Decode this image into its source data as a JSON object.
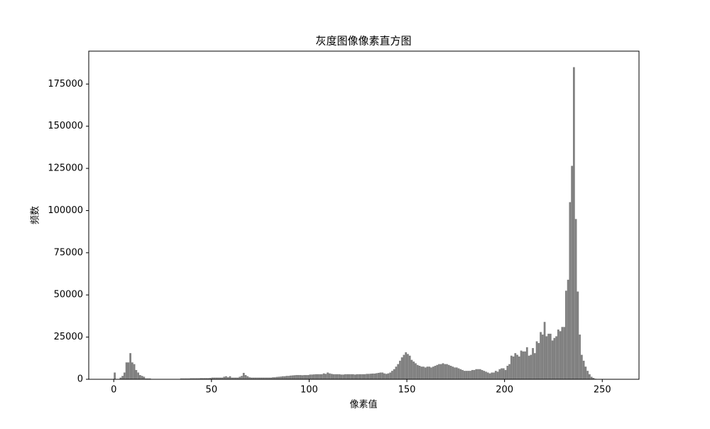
{
  "chart_data": {
    "type": "histogram",
    "title": "灰度图像像素直方图",
    "xlabel": "像素值",
    "ylabel": "频数",
    "color": "#808080",
    "xlim": [
      -12.8,
      268.8
    ],
    "ylim": [
      0,
      194500
    ],
    "xticks": [
      0,
      50,
      100,
      150,
      200,
      250
    ],
    "yticks": [
      0,
      25000,
      50000,
      75000,
      100000,
      125000,
      150000,
      175000
    ],
    "bins": [
      0,
      1,
      2,
      3,
      4,
      5,
      6,
      7,
      8,
      9,
      10,
      11,
      12,
      13,
      14,
      15,
      16,
      17,
      18,
      19,
      20,
      21,
      22,
      23,
      24,
      25,
      26,
      27,
      28,
      29,
      30,
      31,
      32,
      33,
      34,
      35,
      36,
      37,
      38,
      39,
      40,
      41,
      42,
      43,
      44,
      45,
      46,
      47,
      48,
      49,
      50,
      51,
      52,
      53,
      54,
      55,
      56,
      57,
      58,
      59,
      60,
      61,
      62,
      63,
      64,
      65,
      66,
      67,
      68,
      69,
      70,
      71,
      72,
      73,
      74,
      75,
      76,
      77,
      78,
      79,
      80,
      81,
      82,
      83,
      84,
      85,
      86,
      87,
      88,
      89,
      90,
      91,
      92,
      93,
      94,
      95,
      96,
      97,
      98,
      99,
      100,
      101,
      102,
      103,
      104,
      105,
      106,
      107,
      108,
      109,
      110,
      111,
      112,
      113,
      114,
      115,
      116,
      117,
      118,
      119,
      120,
      121,
      122,
      123,
      124,
      125,
      126,
      127,
      128,
      129,
      130,
      131,
      132,
      133,
      134,
      135,
      136,
      137,
      138,
      139,
      140,
      141,
      142,
      143,
      144,
      145,
      146,
      147,
      148,
      149,
      150,
      151,
      152,
      153,
      154,
      155,
      156,
      157,
      158,
      159,
      160,
      161,
      162,
      163,
      164,
      165,
      166,
      167,
      168,
      169,
      170,
      171,
      172,
      173,
      174,
      175,
      176,
      177,
      178,
      179,
      180,
      181,
      182,
      183,
      184,
      185,
      186,
      187,
      188,
      189,
      190,
      191,
      192,
      193,
      194,
      195,
      196,
      197,
      198,
      199,
      200,
      201,
      202,
      203,
      204,
      205,
      206,
      207,
      208,
      209,
      210,
      211,
      212,
      213,
      214,
      215,
      216,
      217,
      218,
      219,
      220,
      221,
      222,
      223,
      224,
      225,
      226,
      227,
      228,
      229,
      230,
      231,
      232,
      233,
      234,
      235,
      236,
      237,
      238,
      239,
      240,
      241,
      242,
      243,
      244,
      245,
      246,
      247,
      248,
      249,
      250,
      251,
      252,
      253,
      254,
      255,
      256
    ],
    "values": [
      4000,
      0,
      0,
      1000,
      2000,
      4000,
      10000,
      10000,
      15500,
      10000,
      9000,
      5500,
      4000,
      2500,
      2000,
      1500,
      500,
      500,
      500,
      200,
      100,
      100,
      100,
      100,
      100,
      100,
      100,
      100,
      100,
      100,
      100,
      100,
      100,
      100,
      500,
      500,
      500,
      500,
      500,
      600,
      600,
      600,
      600,
      600,
      700,
      700,
      700,
      700,
      700,
      800,
      1000,
      1000,
      1000,
      1000,
      1000,
      1000,
      1500,
      1800,
      1200,
      1800,
      1000,
      1000,
      1000,
      1000,
      1500,
      2000,
      3800,
      2500,
      1800,
      1200,
      1000,
      1000,
      1000,
      1000,
      1000,
      1000,
      1000,
      1000,
      1000,
      1000,
      1000,
      1200,
      1200,
      1400,
      1500,
      1600,
      1800,
      1800,
      2000,
      2000,
      2200,
      2300,
      2400,
      2500,
      2500,
      2500,
      2400,
      2500,
      2500,
      2500,
      2800,
      2800,
      2900,
      3000,
      3000,
      3000,
      3000,
      3500,
      3200,
      4000,
      3500,
      3200,
      3000,
      3000,
      3000,
      3000,
      2800,
      2800,
      3000,
      3000,
      3000,
      3000,
      3000,
      2800,
      3000,
      3000,
      3000,
      3000,
      3000,
      3200,
      3200,
      3300,
      3400,
      3400,
      3600,
      3800,
      4000,
      4000,
      3500,
      3200,
      3500,
      4000,
      5000,
      6000,
      7500,
      9000,
      11000,
      13000,
      14500,
      16000,
      15000,
      14000,
      11500,
      10500,
      9500,
      8500,
      8000,
      7500,
      7500,
      7000,
      7500,
      7500,
      7000,
      7500,
      8000,
      8500,
      9000,
      9000,
      9500,
      9000,
      9000,
      8500,
      8000,
      7500,
      7000,
      7000,
      6500,
      6000,
      5500,
      5000,
      5000,
      5000,
      5000,
      5500,
      5500,
      6000,
      6000,
      6000,
      5500,
      5000,
      4500,
      4000,
      3500,
      4000,
      4000,
      5000,
      4500,
      6000,
      6500,
      6500,
      5500,
      8000,
      9000,
      14000,
      13500,
      15500,
      14500,
      13500,
      17000,
      16500,
      16500,
      19000,
      14000,
      14500,
      18500,
      15500,
      22500,
      21500,
      28000,
      26500,
      34000,
      25500,
      27000,
      27000,
      23000,
      24500,
      25500,
      29500,
      28500,
      31000,
      31000,
      52500,
      59000,
      105000,
      126500,
      185000,
      95000,
      52000,
      26500,
      14500,
      11000,
      7500,
      5000,
      3000,
      1500,
      800,
      300,
      100,
      0,
      0,
      0,
      0,
      0,
      0,
      0,
      0
    ]
  }
}
